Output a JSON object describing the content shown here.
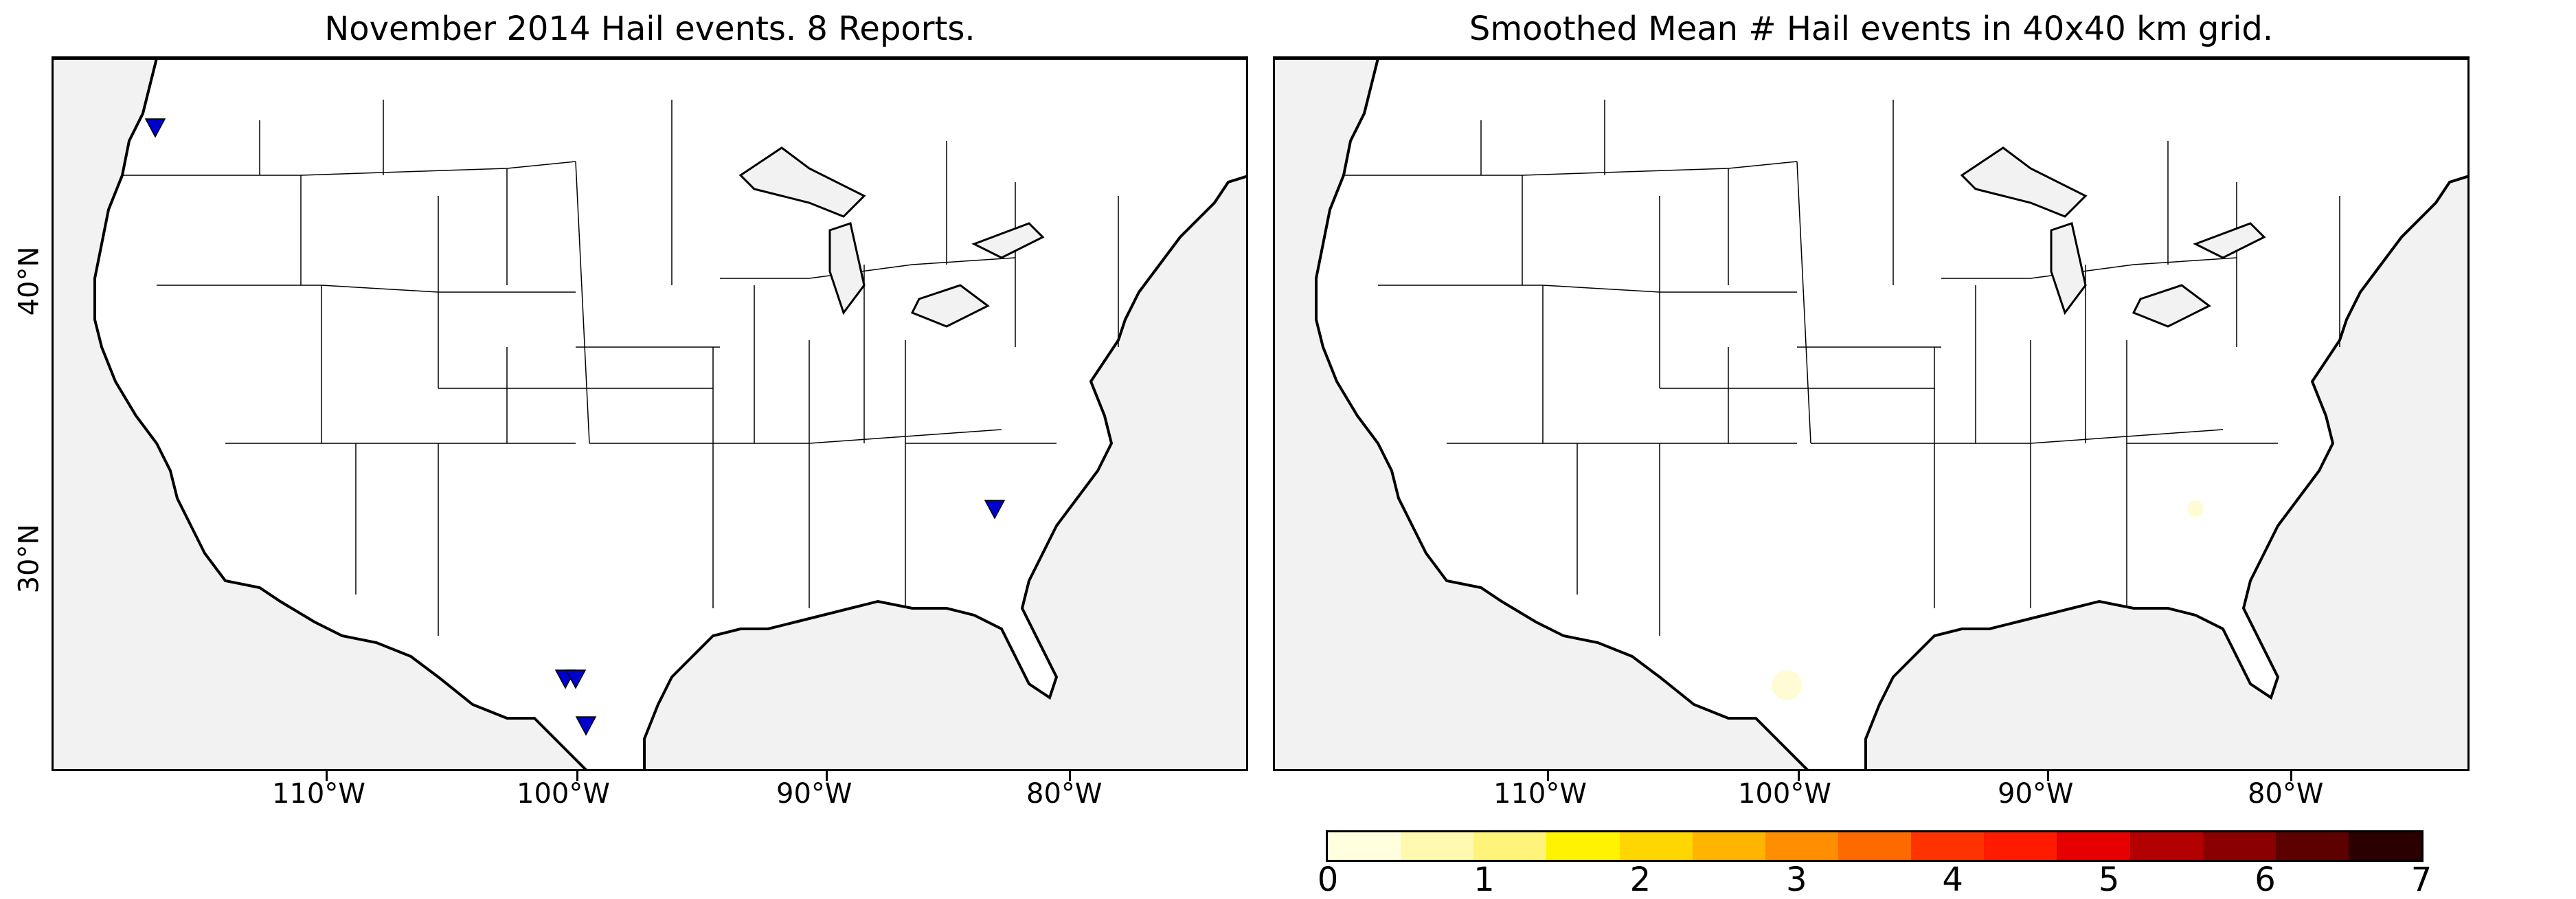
{
  "left_map": {
    "title": "November 2014 Hail events. 8 Reports.",
    "lon_ticks": [
      "110°W",
      "100°W",
      "90°W",
      "80°W"
    ],
    "lat_ticks": [
      "40°N",
      "30°N"
    ],
    "marker_color": "#0000cc"
  },
  "right_map": {
    "title": "Smoothed Mean # Hail events in 40x40 km grid.",
    "lon_ticks": [
      "110°W",
      "100°W",
      "90°W",
      "80°W"
    ],
    "shade_color": "#fffbd0"
  },
  "colorbar": {
    "labels": [
      "0",
      "1",
      "2",
      "3",
      "4",
      "5",
      "6",
      "7"
    ],
    "colors": [
      "#ffffe0",
      "#fffab0",
      "#fff47a",
      "#fff300",
      "#ffd600",
      "#ffb400",
      "#ff8f00",
      "#ff6a00",
      "#ff3300",
      "#ff1a00",
      "#e60000",
      "#b30000",
      "#8a0000",
      "#5c0000",
      "#2a0000"
    ]
  },
  "map_colors": {
    "land": "#ffffff",
    "water": "#f2f2f2",
    "border": "#000000"
  }
}
